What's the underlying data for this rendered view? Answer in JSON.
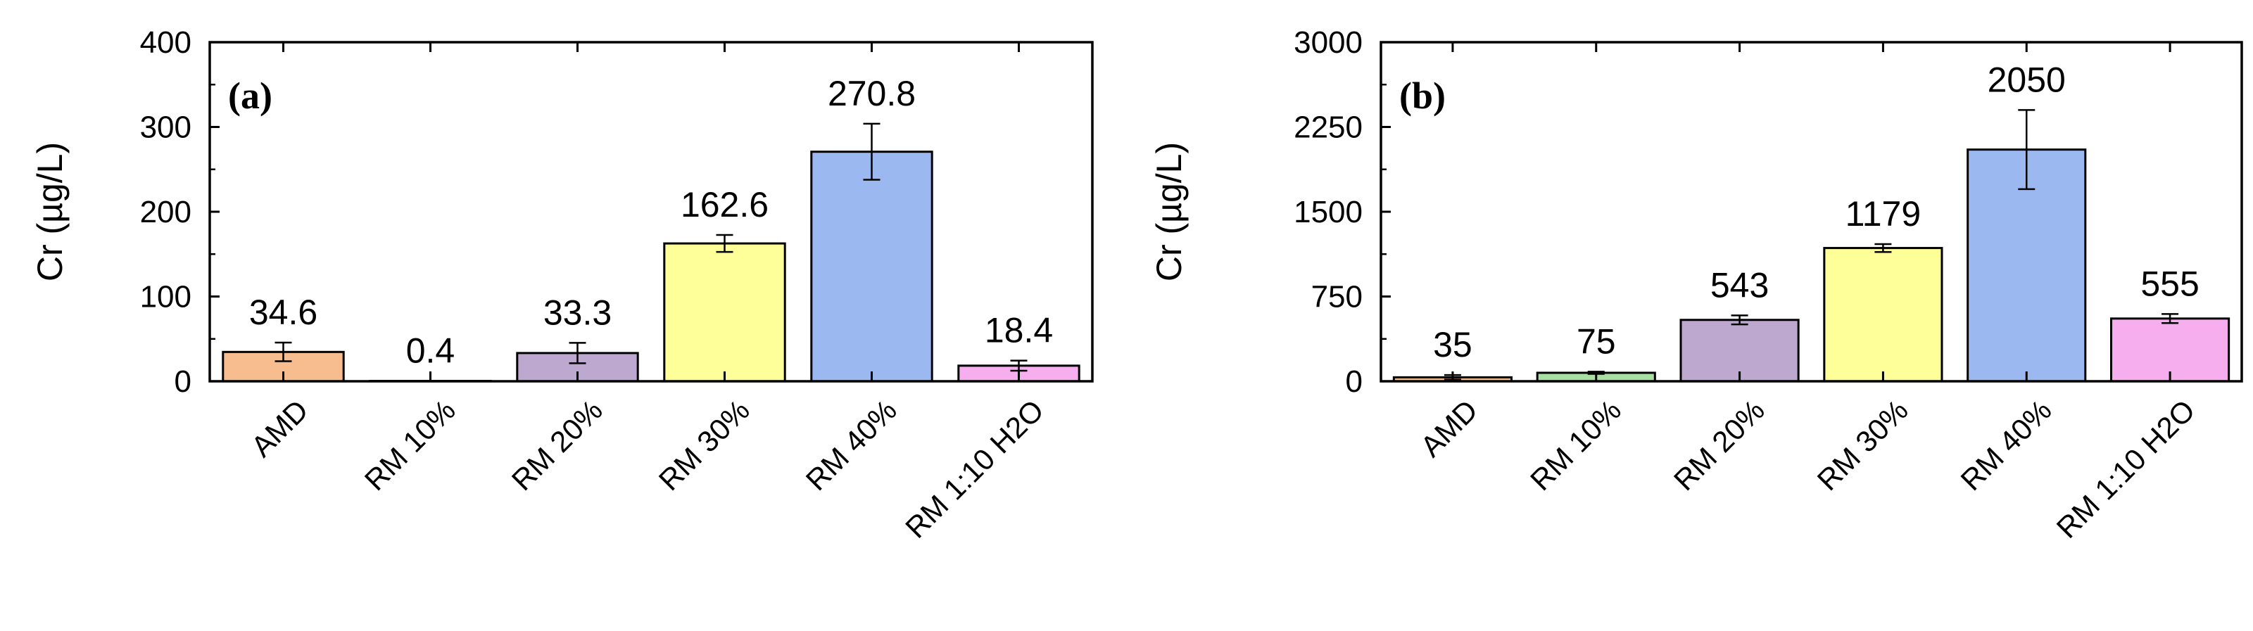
{
  "chart_data": [
    {
      "type": "bar",
      "panel_label": "(a)",
      "ylabel": "Cr (µg/L)",
      "xlabel": "",
      "ylim": [
        0,
        400
      ],
      "yticks": [
        0,
        100,
        200,
        300,
        400
      ],
      "categories": [
        "AMD",
        "RM 10%",
        "RM 20%",
        "RM 30%",
        "RM 40%",
        "RM 1:10 H2O"
      ],
      "values": [
        34.6,
        0.4,
        33.3,
        162.6,
        270.8,
        18.4
      ],
      "value_labels": [
        "34.6",
        "0.4",
        "33.3",
        "162.6",
        "270.8",
        "18.4"
      ],
      "errors": [
        11,
        0.2,
        12,
        10,
        33,
        6
      ],
      "colors": [
        "#F8BD8F",
        "#A9DFA3",
        "#BDA8D0",
        "#FFFF9A",
        "#9BB8F0",
        "#F7AEEF"
      ],
      "grid": false,
      "legend": "none"
    },
    {
      "type": "bar",
      "panel_label": "(b)",
      "ylabel": "Cr (µg/L)",
      "xlabel": "",
      "ylim": [
        0,
        3000
      ],
      "yticks": [
        0,
        750,
        1500,
        2250,
        3000
      ],
      "categories": [
        "AMD",
        "RM 10%",
        "RM 20%",
        "RM 30%",
        "RM 40%",
        "RM 1:10 H2O"
      ],
      "values": [
        35,
        75,
        543,
        1179,
        2050,
        555
      ],
      "value_labels": [
        "35",
        "75",
        "543",
        "1179",
        "2050",
        "555"
      ],
      "errors": [
        20,
        10,
        40,
        35,
        350,
        40
      ],
      "colors": [
        "#F8BD8F",
        "#A9DFA3",
        "#BDA8D0",
        "#FFFF9A",
        "#9BB8F0",
        "#F7AEEF"
      ],
      "grid": false,
      "legend": "none"
    }
  ]
}
